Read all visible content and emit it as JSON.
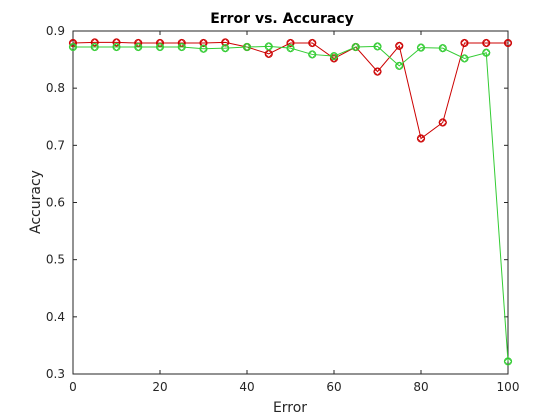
{
  "chart_data": {
    "type": "line",
    "title": "Error vs. Accuracy",
    "xlabel": "Error",
    "ylabel": "Accuracy",
    "xlim": [
      0,
      100
    ],
    "ylim": [
      0.3,
      0.9
    ],
    "xticks": [
      0,
      20,
      40,
      60,
      80,
      100
    ],
    "yticks": [
      0.3,
      0.4,
      0.5,
      0.6,
      0.7,
      0.8,
      0.9
    ],
    "xtick_labels": [
      "0",
      "20",
      "40",
      "60",
      "80",
      "100"
    ],
    "ytick_labels": [
      "0.3",
      "0.4",
      "0.5",
      "0.6",
      "0.7",
      "0.8",
      "0.9"
    ],
    "grid": false,
    "legend": false,
    "x": [
      0,
      5,
      10,
      15,
      20,
      25,
      30,
      35,
      40,
      45,
      50,
      55,
      60,
      65,
      70,
      75,
      80,
      85,
      90,
      95,
      100
    ],
    "series": [
      {
        "color": "#cc0000",
        "marker": "circle-diamond",
        "values": [
          0.879,
          0.88,
          0.88,
          0.879,
          0.879,
          0.879,
          0.879,
          0.88,
          0.872,
          0.86,
          0.879,
          0.879,
          0.852,
          0.872,
          0.829,
          0.874,
          0.712,
          0.74,
          0.879,
          0.879,
          0.879
        ]
      },
      {
        "color": "#33cc33",
        "marker": "circle-diamond",
        "values": [
          0.872,
          0.872,
          0.872,
          0.872,
          0.872,
          0.872,
          0.869,
          0.87,
          0.872,
          0.873,
          0.87,
          0.859,
          0.856,
          0.872,
          0.873,
          0.839,
          0.871,
          0.87,
          0.852,
          0.862,
          0.322
        ]
      }
    ]
  }
}
